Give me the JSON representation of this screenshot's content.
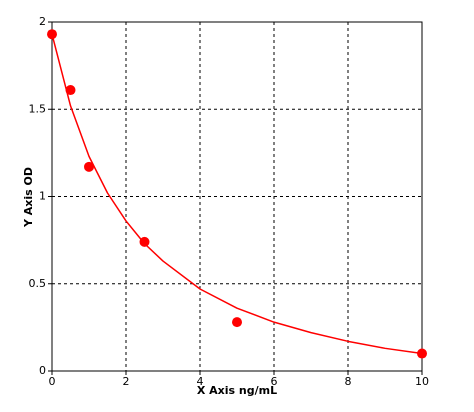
{
  "chart_data": {
    "type": "scatter",
    "x_label": "X Axis ng/mL",
    "y_label": "Y Axis OD",
    "xlim": [
      0,
      10
    ],
    "ylim": [
      0,
      2
    ],
    "xticks": [
      0,
      2,
      4,
      6,
      8,
      10
    ],
    "yticks": [
      0,
      0.5,
      1,
      1.5,
      2
    ],
    "grid": true,
    "series": [
      {
        "color": "#ff0000",
        "x": [
          0,
          0.5,
          1,
          2.5,
          5,
          10
        ],
        "values": [
          1.93,
          1.61,
          1.17,
          0.74,
          0.28,
          0.1
        ]
      },
      {
        "color": "#ff0000",
        "x": [
          0,
          0.5,
          1,
          1.5,
          2,
          2.5,
          3,
          4,
          5,
          6,
          7,
          8,
          9,
          10
        ],
        "values": [
          1.93,
          1.52,
          1.23,
          1.02,
          0.86,
          0.73,
          0.63,
          0.47,
          0.36,
          0.28,
          0.22,
          0.17,
          0.13,
          0.1
        ]
      }
    ]
  }
}
